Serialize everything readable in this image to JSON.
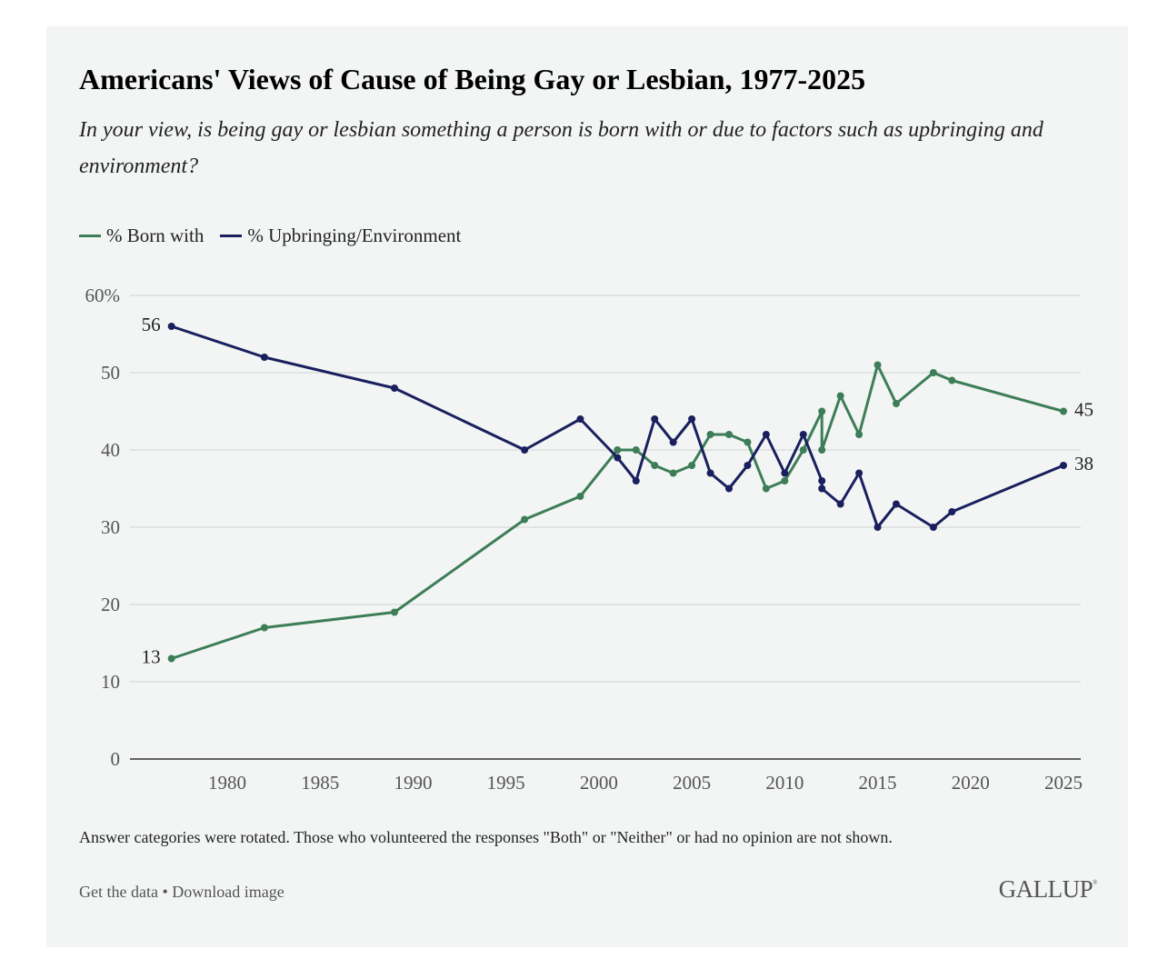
{
  "header": {
    "title": "Americans' Views of Cause of Being Gay or Lesbian, 1977-2025",
    "subtitle": "In your view, is being gay or lesbian something a person is born with or due to factors such as upbringing and environment?"
  },
  "legend": [
    {
      "label": "% Born with",
      "color": "#3d7d58"
    },
    {
      "label": "% Upbringing/Environment",
      "color": "#1a1f5e"
    }
  ],
  "footer": {
    "note": "Answer categories were rotated. Those who volunteered the responses \"Both\" or \"Neither\" or had no opinion are not shown.",
    "get_data": "Get the data",
    "separator": "•",
    "download": "Download image",
    "brand": "GALLUP",
    "brand_mark": "®"
  },
  "chart_data": {
    "type": "line",
    "title": "Americans' Views of Cause of Being Gay or Lesbian, 1977-2025",
    "xlabel": "",
    "ylabel": "",
    "xlim": [
      1975.8,
      2025.9
    ],
    "ylim": [
      0,
      60
    ],
    "grid": true,
    "legend_position": "top-left",
    "y_ticks": [
      {
        "value": 0,
        "label": "0"
      },
      {
        "value": 10,
        "label": "10"
      },
      {
        "value": 20,
        "label": "20"
      },
      {
        "value": 30,
        "label": "30"
      },
      {
        "value": 40,
        "label": "40"
      },
      {
        "value": 50,
        "label": "50"
      },
      {
        "value": 60,
        "label": "60%"
      }
    ],
    "x_ticks": [
      {
        "value": 1980,
        "label": "1980"
      },
      {
        "value": 1985,
        "label": "1985"
      },
      {
        "value": 1990,
        "label": "1990"
      },
      {
        "value": 1995,
        "label": "1995"
      },
      {
        "value": 2000,
        "label": "2000"
      },
      {
        "value": 2005,
        "label": "2005"
      },
      {
        "value": 2010,
        "label": "2010"
      },
      {
        "value": 2015,
        "label": "2015"
      },
      {
        "value": 2020,
        "label": "2020"
      },
      {
        "value": 2025,
        "label": "2025"
      }
    ],
    "x": [
      1977,
      1982,
      1989,
      1996,
      1999,
      2001,
      2002,
      2003,
      2004,
      2005,
      2006,
      2007,
      2008,
      2009,
      2010,
      2011,
      2012,
      2012,
      2013,
      2014,
      2015,
      2016,
      2018,
      2019,
      2025
    ],
    "series": [
      {
        "name": "% Born with",
        "color": "#3d7d58",
        "values": [
          13,
          17,
          19,
          31,
          34,
          40,
          40,
          38,
          37,
          38,
          42,
          42,
          41,
          35,
          36,
          40,
          45,
          40,
          47,
          42,
          51,
          46,
          50,
          49,
          45
        ],
        "labels": [
          {
            "index": 0,
            "text": "13",
            "side": "left"
          },
          {
            "index": 24,
            "text": "45",
            "side": "right"
          }
        ]
      },
      {
        "name": "% Upbringing/Environment",
        "color": "#1a1f5e",
        "values": [
          56,
          52,
          48,
          40,
          44,
          39,
          36,
          44,
          41,
          44,
          37,
          35,
          38,
          42,
          37,
          42,
          36,
          35,
          33,
          37,
          30,
          33,
          30,
          32,
          38
        ],
        "labels": [
          {
            "index": 0,
            "text": "56",
            "side": "left"
          },
          {
            "index": 24,
            "text": "38",
            "side": "right"
          }
        ]
      }
    ]
  }
}
